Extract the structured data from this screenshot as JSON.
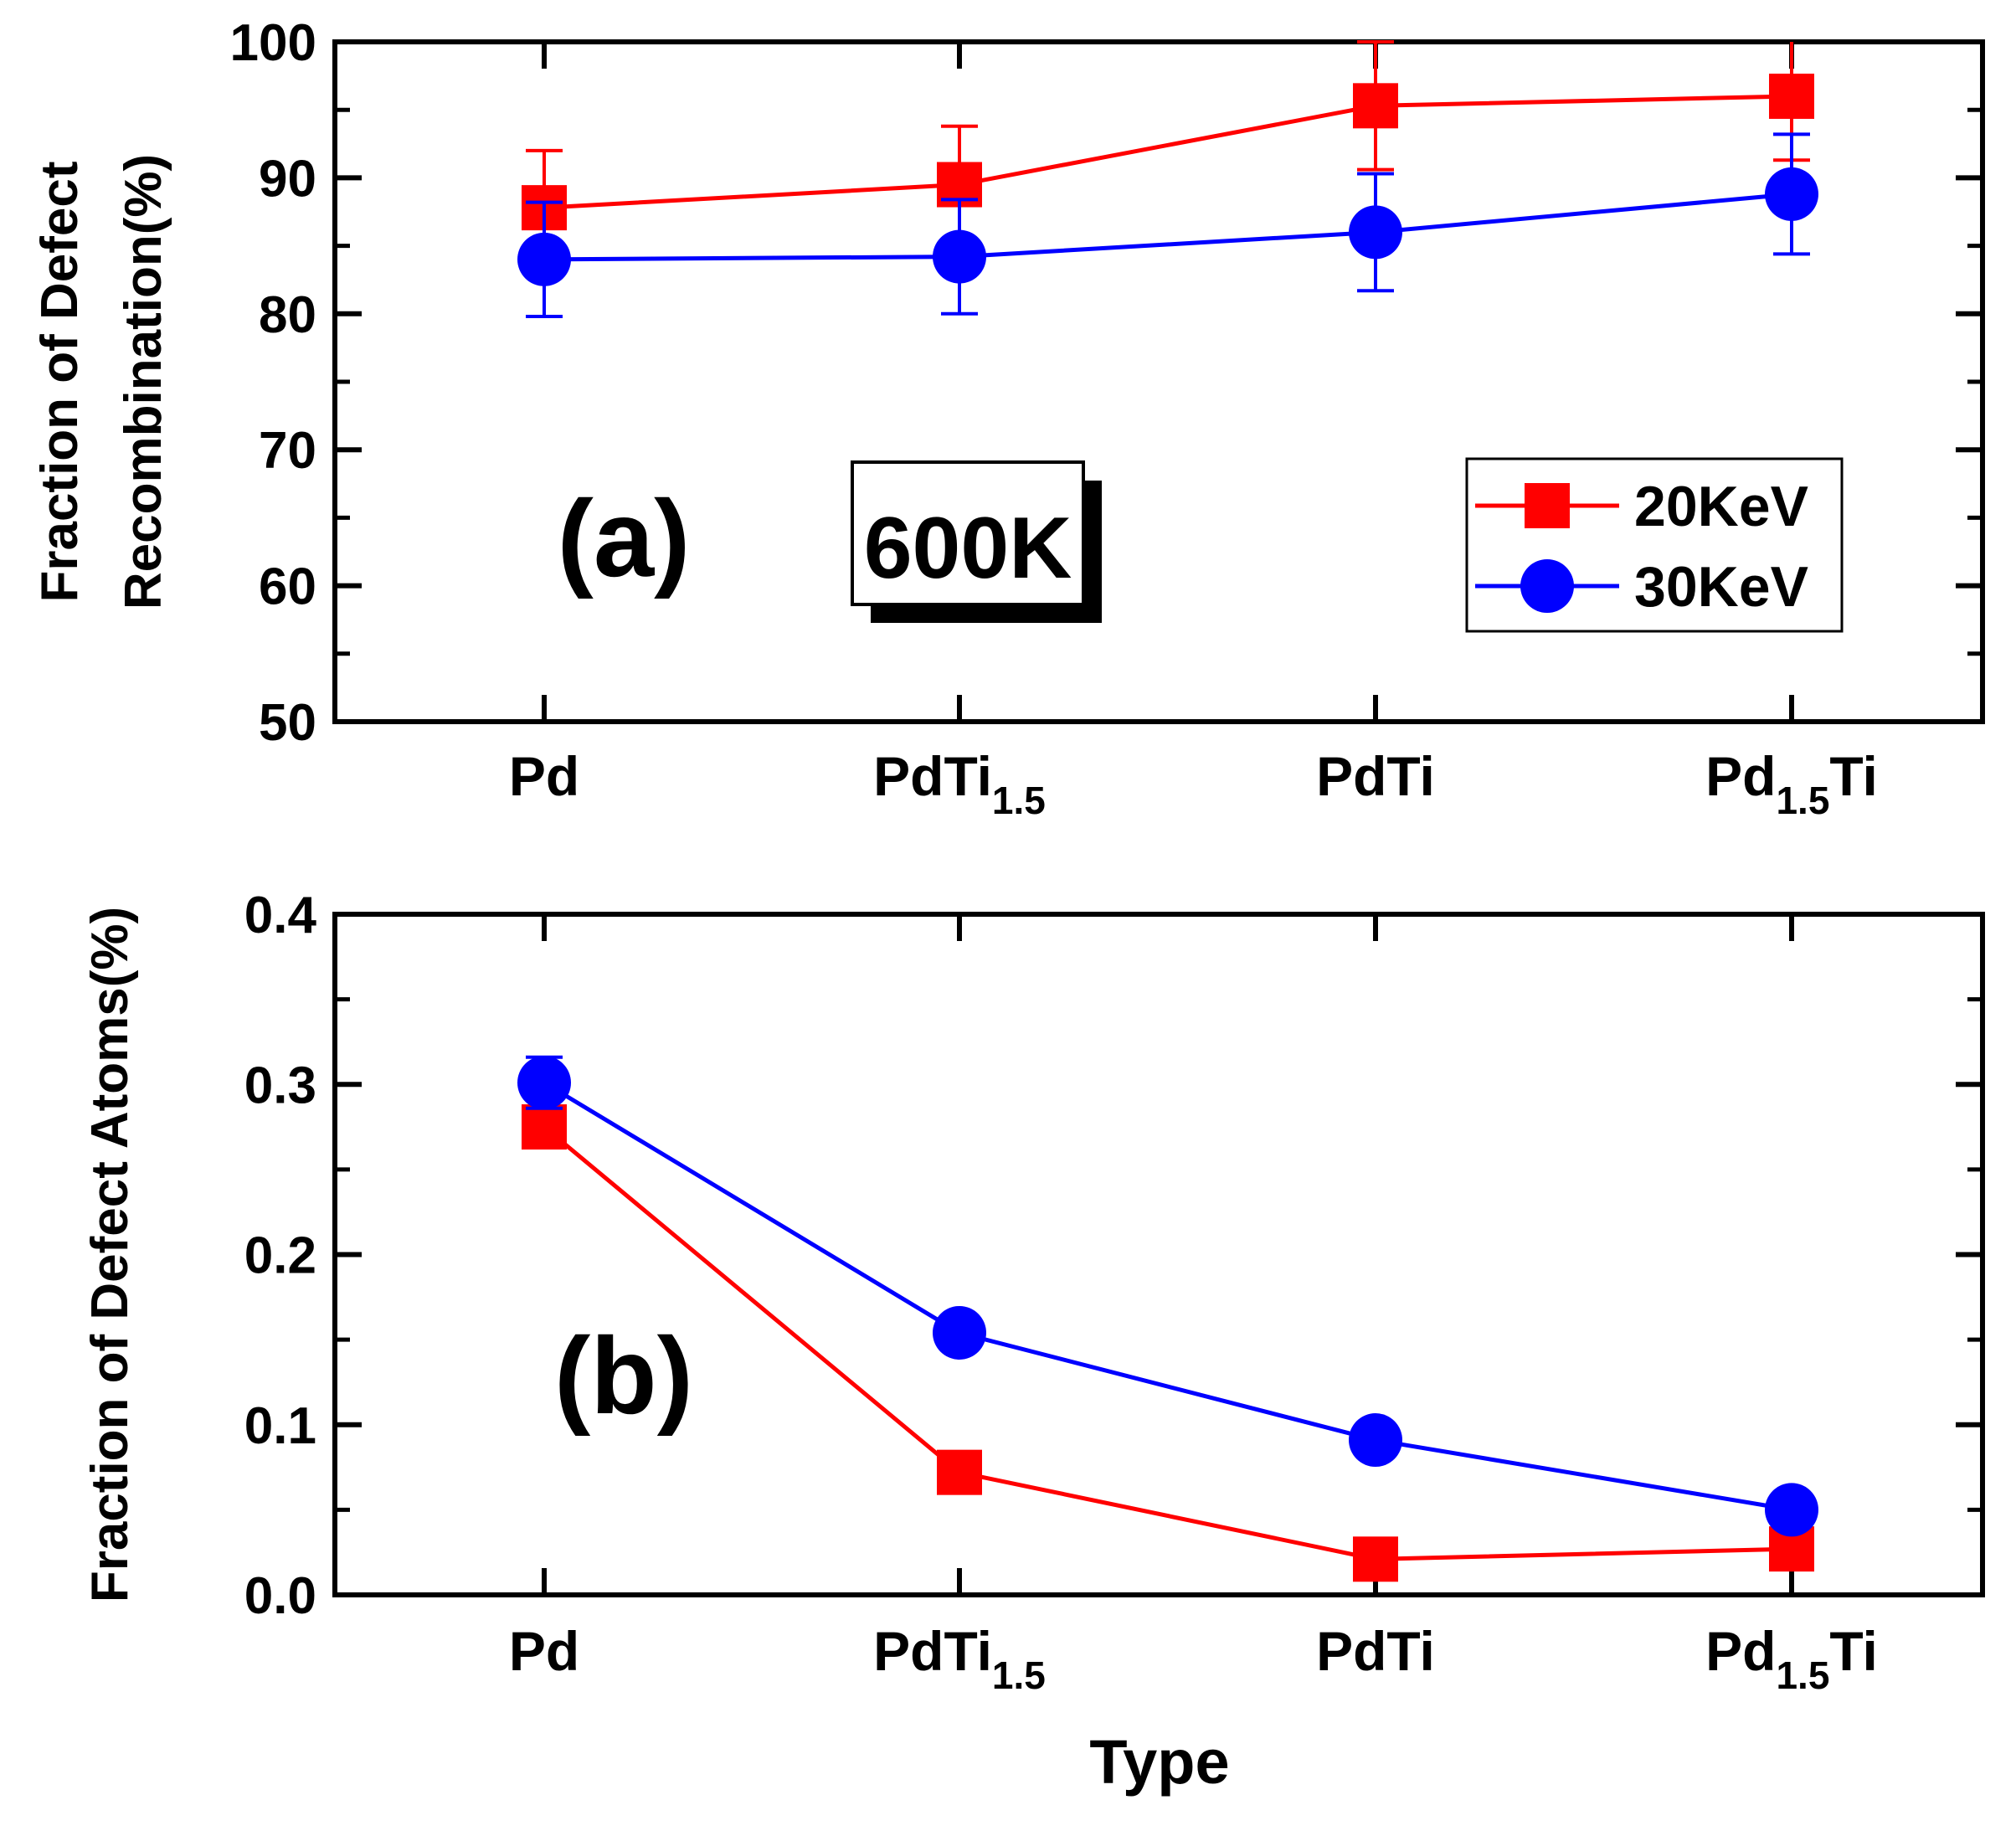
{
  "colors": {
    "series_20": "#ff0000",
    "series_30": "#0000ff",
    "axes": "#000000"
  },
  "chart_data": [
    {
      "type": "line",
      "panel_label": "(a)",
      "annotation": "600K",
      "ylabel": [
        "Fraction of Defect",
        "Recombination(%)"
      ],
      "xlabel": "",
      "ylim": [
        50,
        100
      ],
      "yticks": [
        "50",
        "60",
        "70",
        "80",
        "90",
        "100"
      ],
      "categories": [
        {
          "base": "Pd",
          "parts": [
            {
              "t": "Pd",
              "sub": false
            }
          ]
        },
        {
          "base": "PdTi1.5",
          "parts": [
            {
              "t": "PdTi",
              "sub": false
            },
            {
              "t": "1.5",
              "sub": true
            }
          ]
        },
        {
          "base": "PdTi",
          "parts": [
            {
              "t": "PdTi",
              "sub": false
            }
          ]
        },
        {
          "base": "Pd1.5Ti",
          "parts": [
            {
              "t": "Pd",
              "sub": false
            },
            {
              "t": "1.5",
              "sub": true
            },
            {
              "t": "Ti",
              "sub": false
            }
          ]
        }
      ],
      "legend": {
        "position": "right",
        "entries": [
          "20KeV",
          "30KeV"
        ]
      },
      "series": [
        {
          "name": "20KeV",
          "marker": "square",
          "values": [
            87.8,
            89.5,
            95.3,
            96.0
          ],
          "errors": [
            4.2,
            4.3,
            4.7,
            4.7
          ]
        },
        {
          "name": "30KeV",
          "marker": "circle",
          "values": [
            84.0,
            84.2,
            86.0,
            88.8
          ],
          "errors": [
            4.2,
            4.2,
            4.3,
            4.4
          ]
        }
      ]
    },
    {
      "type": "line",
      "panel_label": "(b)",
      "ylabel": [
        "Fraction of Defect Atoms(%)"
      ],
      "xlabel": "Type",
      "ylim": [
        0.0,
        0.4
      ],
      "yticks": [
        "0.0",
        "0.1",
        "0.2",
        "0.3",
        "0.4"
      ],
      "categories": [
        {
          "base": "Pd",
          "parts": [
            {
              "t": "Pd",
              "sub": false
            }
          ]
        },
        {
          "base": "PdTi1.5",
          "parts": [
            {
              "t": "PdTi",
              "sub": false
            },
            {
              "t": "1.5",
              "sub": true
            }
          ]
        },
        {
          "base": "PdTi",
          "parts": [
            {
              "t": "PdTi",
              "sub": false
            }
          ]
        },
        {
          "base": "Pd1.5Ti",
          "parts": [
            {
              "t": "Pd",
              "sub": false
            },
            {
              "t": "1.5",
              "sub": true
            },
            {
              "t": "Ti",
              "sub": false
            }
          ]
        }
      ],
      "series": [
        {
          "name": "20KeV",
          "marker": "square",
          "values": [
            0.275,
            0.072,
            0.021,
            0.027
          ],
          "errors": [
            0.01,
            0.0,
            0.0,
            0.0
          ]
        },
        {
          "name": "30KeV",
          "marker": "circle",
          "values": [
            0.301,
            0.154,
            0.091,
            0.05
          ],
          "errors": [
            0.015,
            0.0,
            0.0,
            0.0
          ]
        }
      ]
    }
  ]
}
